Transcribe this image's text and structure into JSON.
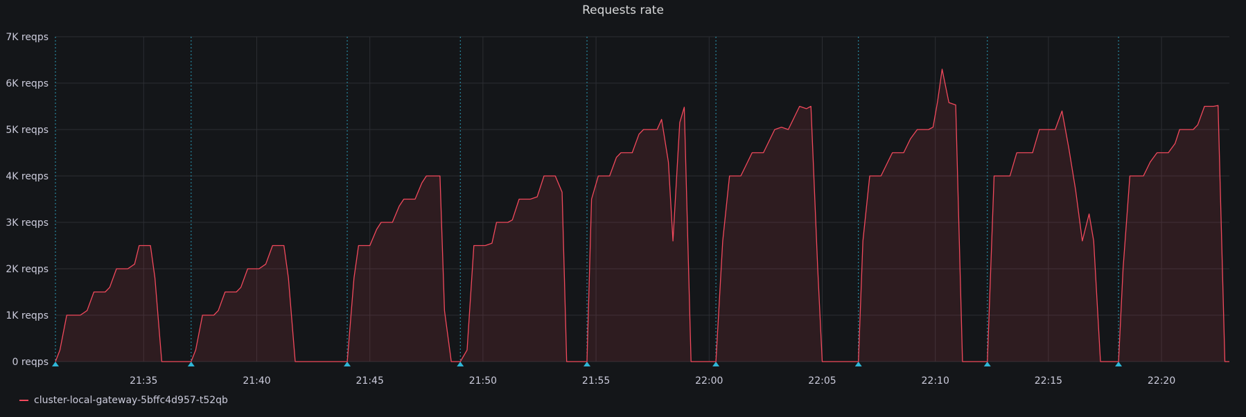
{
  "panel": {
    "title": "Requests rate"
  },
  "legend": {
    "label": "cluster-local-gateway-5bffc4d957-t52qb"
  },
  "colors": {
    "series": "#f2495c",
    "annotation": "#2fb6d6",
    "grid": "#2c2e33",
    "background": "#141619"
  },
  "chart_data": {
    "type": "area",
    "title": "Requests rate",
    "xlabel": "",
    "ylabel": "",
    "ylim": [
      0,
      7000
    ],
    "y_ticks": [
      0,
      1000,
      2000,
      3000,
      4000,
      5000,
      6000,
      7000
    ],
    "y_tick_labels": [
      "0 reqps",
      "1K reqps",
      "2K reqps",
      "3K reqps",
      "4K reqps",
      "5K reqps",
      "6K reqps",
      "7K reqps"
    ],
    "xlim": [
      "21:31:00",
      "21:23:00+1h"
    ],
    "x_ticks": [
      "21:35",
      "21:40",
      "21:45",
      "21:50",
      "21:55",
      "22:00",
      "22:05",
      "22:10",
      "22:15",
      "22:20"
    ],
    "x_tick_minutes": [
      35,
      40,
      45,
      50,
      55,
      60,
      65,
      70,
      75,
      80
    ],
    "x_range_minutes": [
      31.1,
      83.0
    ],
    "grid": true,
    "legend_position": "bottom-left",
    "annotations_minutes": [
      31.1,
      37.1,
      44.0,
      49.0,
      54.6,
      60.3,
      66.6,
      72.3,
      78.1
    ],
    "series": [
      {
        "name": "cluster-local-gateway-5bffc4d957-t52qb",
        "points": [
          [
            31.1,
            0
          ],
          [
            31.3,
            250
          ],
          [
            31.6,
            1000
          ],
          [
            32.0,
            1000
          ],
          [
            32.2,
            1000
          ],
          [
            32.5,
            1100
          ],
          [
            32.8,
            1500
          ],
          [
            33.3,
            1500
          ],
          [
            33.5,
            1600
          ],
          [
            33.8,
            2000
          ],
          [
            34.3,
            2000
          ],
          [
            34.6,
            2100
          ],
          [
            34.8,
            2500
          ],
          [
            35.3,
            2500
          ],
          [
            35.5,
            1800
          ],
          [
            35.8,
            0
          ],
          [
            37.1,
            0
          ],
          [
            37.3,
            250
          ],
          [
            37.6,
            1000
          ],
          [
            38.1,
            1000
          ],
          [
            38.3,
            1100
          ],
          [
            38.6,
            1500
          ],
          [
            39.1,
            1500
          ],
          [
            39.3,
            1600
          ],
          [
            39.6,
            2000
          ],
          [
            40.1,
            2000
          ],
          [
            40.4,
            2100
          ],
          [
            40.7,
            2500
          ],
          [
            41.2,
            2500
          ],
          [
            41.4,
            1800
          ],
          [
            41.7,
            0
          ],
          [
            44.0,
            0
          ],
          [
            44.3,
            1800
          ],
          [
            44.5,
            2500
          ],
          [
            45.0,
            2500
          ],
          [
            45.3,
            2850
          ],
          [
            45.5,
            3000
          ],
          [
            46.0,
            3000
          ],
          [
            46.3,
            3350
          ],
          [
            46.5,
            3500
          ],
          [
            47.0,
            3500
          ],
          [
            47.3,
            3850
          ],
          [
            47.5,
            4000
          ],
          [
            48.1,
            4000
          ],
          [
            48.3,
            1100
          ],
          [
            48.6,
            0
          ],
          [
            49.0,
            0
          ],
          [
            49.3,
            250
          ],
          [
            49.6,
            2500
          ],
          [
            50.1,
            2500
          ],
          [
            50.4,
            2550
          ],
          [
            50.6,
            3000
          ],
          [
            51.1,
            3000
          ],
          [
            51.3,
            3050
          ],
          [
            51.6,
            3500
          ],
          [
            52.1,
            3500
          ],
          [
            52.4,
            3550
          ],
          [
            52.7,
            4000
          ],
          [
            53.2,
            4000
          ],
          [
            53.5,
            3650
          ],
          [
            53.7,
            0
          ],
          [
            54.6,
            0
          ],
          [
            54.8,
            3500
          ],
          [
            55.1,
            4000
          ],
          [
            55.6,
            4000
          ],
          [
            55.9,
            4400
          ],
          [
            56.1,
            4500
          ],
          [
            56.6,
            4500
          ],
          [
            56.9,
            4900
          ],
          [
            57.1,
            5000
          ],
          [
            57.7,
            5000
          ],
          [
            57.9,
            5220
          ],
          [
            58.2,
            4300
          ],
          [
            58.4,
            2600
          ],
          [
            58.7,
            5150
          ],
          [
            58.9,
            5480
          ],
          [
            59.2,
            0
          ],
          [
            60.3,
            0
          ],
          [
            60.6,
            2600
          ],
          [
            60.9,
            4000
          ],
          [
            61.4,
            4000
          ],
          [
            61.7,
            4300
          ],
          [
            61.9,
            4500
          ],
          [
            62.4,
            4500
          ],
          [
            62.7,
            4800
          ],
          [
            62.9,
            5000
          ],
          [
            63.2,
            5050
          ],
          [
            63.5,
            5000
          ],
          [
            63.8,
            5300
          ],
          [
            64.0,
            5500
          ],
          [
            64.3,
            5450
          ],
          [
            64.5,
            5500
          ],
          [
            64.8,
            2000
          ],
          [
            65.0,
            0
          ],
          [
            66.6,
            0
          ],
          [
            66.8,
            2600
          ],
          [
            67.1,
            4000
          ],
          [
            67.6,
            4000
          ],
          [
            67.9,
            4300
          ],
          [
            68.1,
            4500
          ],
          [
            68.6,
            4500
          ],
          [
            68.9,
            4800
          ],
          [
            69.2,
            5000
          ],
          [
            69.7,
            5000
          ],
          [
            69.9,
            5050
          ],
          [
            70.1,
            5600
          ],
          [
            70.3,
            6300
          ],
          [
            70.6,
            5580
          ],
          [
            70.9,
            5530
          ],
          [
            71.2,
            0
          ],
          [
            72.3,
            0
          ],
          [
            72.6,
            4000
          ],
          [
            73.3,
            4000
          ],
          [
            73.6,
            4500
          ],
          [
            74.3,
            4500
          ],
          [
            74.6,
            5000
          ],
          [
            75.3,
            5000
          ],
          [
            75.6,
            5400
          ],
          [
            75.9,
            4600
          ],
          [
            76.2,
            3700
          ],
          [
            76.5,
            2600
          ],
          [
            76.8,
            3180
          ],
          [
            77.0,
            2600
          ],
          [
            77.3,
            0
          ],
          [
            78.1,
            0
          ],
          [
            78.3,
            2000
          ],
          [
            78.6,
            4000
          ],
          [
            79.2,
            4000
          ],
          [
            79.5,
            4300
          ],
          [
            79.8,
            4500
          ],
          [
            80.3,
            4500
          ],
          [
            80.6,
            4700
          ],
          [
            80.8,
            5000
          ],
          [
            81.4,
            5000
          ],
          [
            81.6,
            5100
          ],
          [
            81.9,
            5500
          ],
          [
            82.3,
            5500
          ],
          [
            82.5,
            5520
          ],
          [
            82.8,
            0
          ],
          [
            83.0,
            0
          ]
        ]
      }
    ]
  }
}
